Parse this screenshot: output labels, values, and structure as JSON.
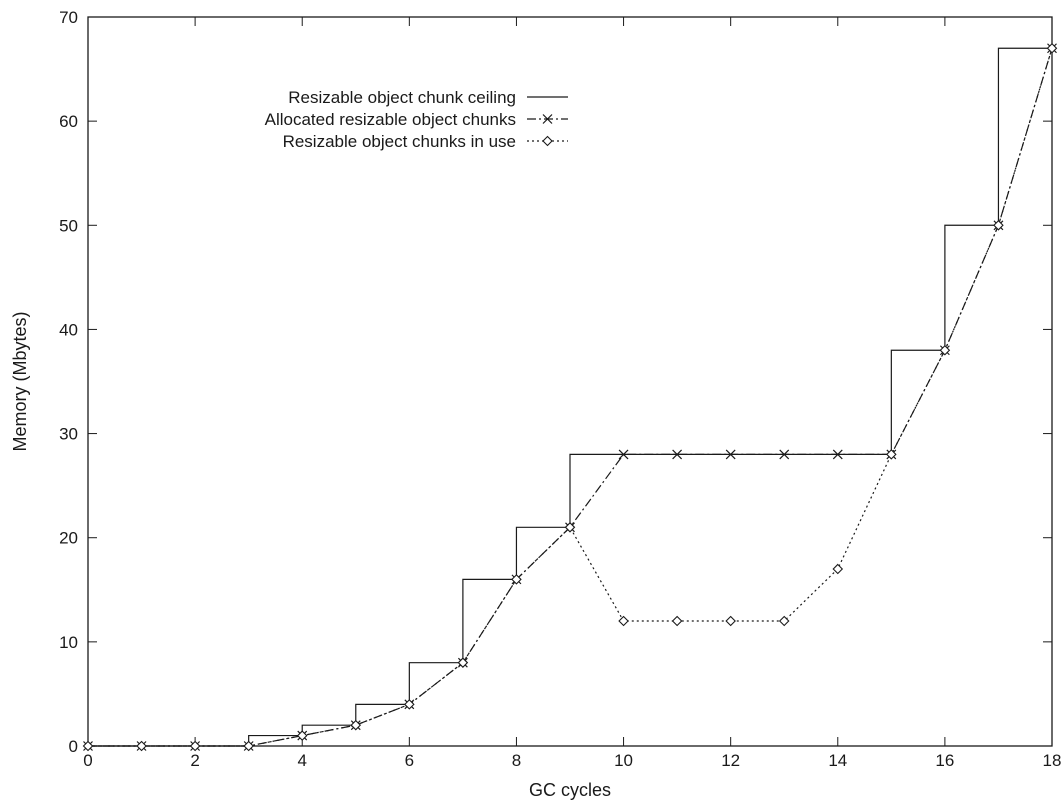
{
  "chart_data": {
    "type": "line",
    "title": "",
    "xlabel": "GC cycles",
    "ylabel": "Memory (Mbytes)",
    "xlim": [
      0,
      18
    ],
    "ylim": [
      0,
      70
    ],
    "x_ticks": [
      0,
      2,
      4,
      6,
      8,
      10,
      12,
      14,
      16,
      18
    ],
    "y_ticks": [
      0,
      10,
      20,
      30,
      40,
      50,
      60,
      70
    ],
    "grid": false,
    "legend_position": "top-left",
    "series": [
      {
        "name": "Resizable object chunk ceiling",
        "style": "step",
        "marker": "none",
        "color": "#1a1a1a",
        "x": [
          0,
          1,
          2,
          3,
          4,
          5,
          6,
          7,
          8,
          9,
          10,
          11,
          12,
          13,
          14,
          15,
          16,
          17,
          18
        ],
        "values": [
          0,
          0,
          0,
          1,
          2,
          4,
          8,
          16,
          21,
          28,
          28,
          28,
          28,
          28,
          28,
          38,
          50,
          67,
          67
        ]
      },
      {
        "name": "Allocated resizable object chunks",
        "style": "dash-dot",
        "marker": "x",
        "color": "#1a1a1a",
        "x": [
          0,
          1,
          2,
          3,
          4,
          5,
          6,
          7,
          8,
          9,
          10,
          11,
          12,
          13,
          14,
          15,
          16,
          17,
          18
        ],
        "values": [
          0,
          0,
          0,
          0,
          1,
          2,
          4,
          8,
          16,
          21,
          28,
          28,
          28,
          28,
          28,
          28,
          38,
          50,
          67
        ]
      },
      {
        "name": "Resizable object chunks in use",
        "style": "dotted",
        "marker": "diamond",
        "color": "#1a1a1a",
        "x": [
          0,
          1,
          2,
          3,
          4,
          5,
          6,
          7,
          8,
          9,
          10,
          11,
          12,
          13,
          14,
          15,
          16,
          17,
          18
        ],
        "values": [
          0,
          0,
          0,
          0,
          1,
          2,
          4,
          8,
          16,
          21,
          12,
          12,
          12,
          12,
          17,
          28,
          38,
          50,
          67
        ]
      }
    ]
  }
}
